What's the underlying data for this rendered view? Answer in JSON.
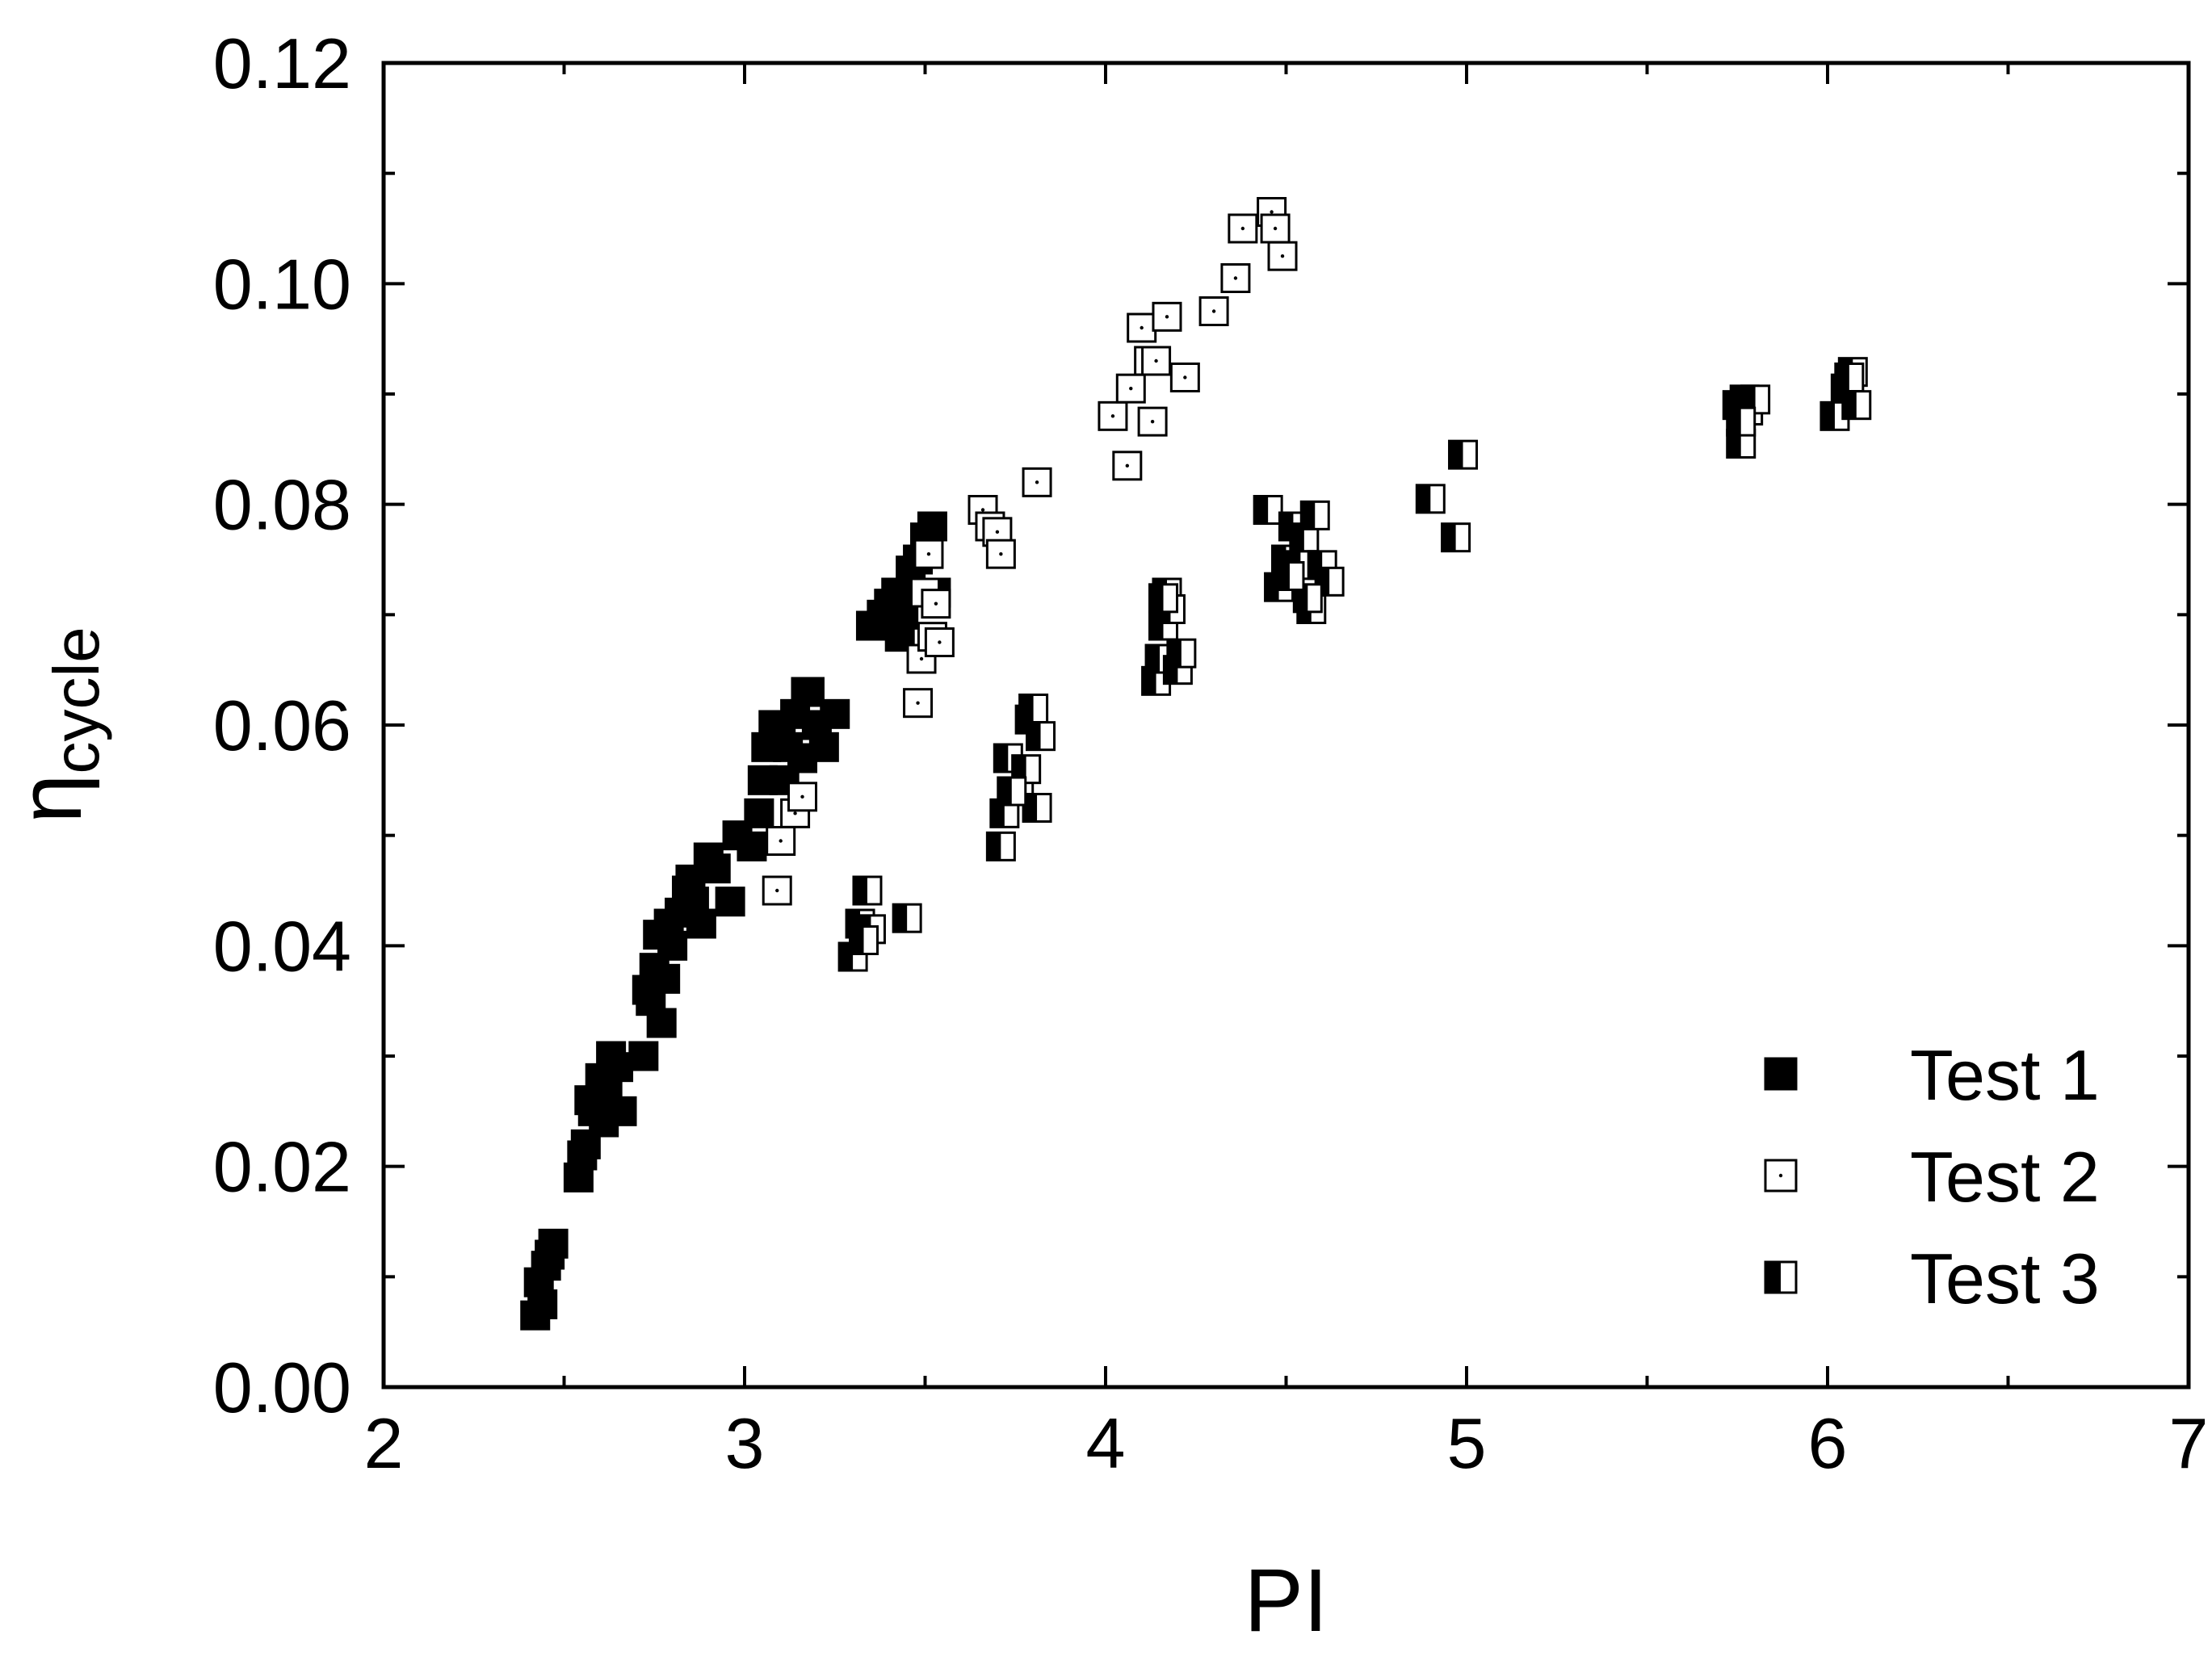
{
  "chart_data": {
    "type": "scatter",
    "title": "",
    "xlabel": "PI",
    "ylabel_main": "η",
    "ylabel_sub": "cycle",
    "xlim": [
      2,
      7
    ],
    "ylim": [
      0,
      0.12
    ],
    "x_ticks": [
      "2",
      "3",
      "4",
      "5",
      "6",
      "7"
    ],
    "y_ticks": [
      "0.00",
      "0.02",
      "0.04",
      "0.06",
      "0.08",
      "0.10",
      "0.12"
    ],
    "grid": false,
    "legend_position": "bottom-right",
    "series": [
      {
        "name": "Test 1",
        "marker": "filled-square",
        "x": [
          2.42,
          2.44,
          2.45,
          2.47,
          2.43,
          2.46,
          2.54,
          2.56,
          2.58,
          2.6,
          2.62,
          2.55,
          2.63,
          2.66,
          2.65,
          2.57,
          2.61,
          2.72,
          2.74,
          2.75,
          2.76,
          2.77,
          2.78,
          2.8,
          2.82,
          2.79,
          2.73,
          2.84,
          2.86,
          2.88,
          2.9,
          2.85,
          2.92,
          2.96,
          2.98,
          3.02,
          3.04,
          3.05,
          3.06,
          3.08,
          3.1,
          3.12,
          3.14,
          3.16,
          3.18,
          3.2,
          3.22,
          3.25,
          3.11,
          3.17,
          3.35,
          3.38,
          3.4,
          3.42,
          3.44,
          3.46,
          3.48,
          3.5,
          3.52,
          3.53,
          3.43
        ],
        "y": [
          0.0065,
          0.0075,
          0.011,
          0.013,
          0.0095,
          0.012,
          0.019,
          0.022,
          0.025,
          0.028,
          0.027,
          0.021,
          0.03,
          0.025,
          0.029,
          0.026,
          0.024,
          0.03,
          0.035,
          0.038,
          0.041,
          0.033,
          0.037,
          0.04,
          0.043,
          0.042,
          0.036,
          0.045,
          0.044,
          0.042,
          0.048,
          0.046,
          0.047,
          0.044,
          0.05,
          0.049,
          0.052,
          0.055,
          0.058,
          0.06,
          0.059,
          0.058,
          0.061,
          0.057,
          0.063,
          0.06,
          0.058,
          0.061,
          0.055,
          0.063,
          0.069,
          0.07,
          0.071,
          0.072,
          0.07,
          0.074,
          0.075,
          0.077,
          0.078,
          0.072,
          0.068
        ]
      },
      {
        "name": "Test 2",
        "marker": "open-square-dot",
        "x": [
          3.09,
          3.1,
          3.14,
          3.16,
          3.48,
          3.49,
          3.5,
          3.51,
          3.52,
          3.53,
          3.54,
          3.66,
          3.68,
          3.7,
          3.71,
          3.81,
          4.02,
          4.06,
          4.07,
          4.1,
          4.12,
          4.13,
          4.14,
          4.17,
          4.22,
          4.3,
          4.36,
          4.38,
          4.46,
          4.47,
          4.49
        ],
        "y": [
          0.045,
          0.0495,
          0.052,
          0.0535,
          0.062,
          0.066,
          0.072,
          0.0755,
          0.068,
          0.071,
          0.0675,
          0.0795,
          0.078,
          0.0775,
          0.0755,
          0.082,
          0.088,
          0.0835,
          0.0905,
          0.096,
          0.093,
          0.0875,
          0.093,
          0.097,
          0.0915,
          0.0975,
          0.1005,
          0.105,
          0.1065,
          0.105,
          0.1025
        ]
      },
      {
        "name": "Test 3",
        "marker": "half-filled-square",
        "x": [
          3.3,
          3.32,
          3.34,
          3.35,
          3.33,
          3.45,
          3.71,
          3.72,
          3.73,
          3.76,
          3.78,
          3.79,
          3.8,
          3.81,
          3.82,
          3.74,
          4.14,
          4.15,
          4.16,
          4.17,
          4.18,
          4.2,
          4.21,
          4.16,
          4.45,
          4.48,
          4.5,
          4.52,
          4.54,
          4.55,
          4.57,
          4.58,
          4.6,
          4.62,
          4.56,
          4.51,
          4.9,
          4.97,
          4.99,
          5.75,
          5.76,
          5.77,
          5.78,
          5.8,
          5.76,
          6.02,
          6.05,
          6.07,
          6.08,
          6.06
        ],
        "y": [
          0.039,
          0.042,
          0.045,
          0.0415,
          0.0405,
          0.0425,
          0.049,
          0.052,
          0.057,
          0.054,
          0.056,
          0.0605,
          0.0615,
          0.0525,
          0.059,
          0.054,
          0.064,
          0.066,
          0.069,
          0.072,
          0.0705,
          0.065,
          0.0665,
          0.0715,
          0.0795,
          0.0725,
          0.075,
          0.078,
          0.0745,
          0.077,
          0.0705,
          0.079,
          0.0745,
          0.073,
          0.0715,
          0.0735,
          0.0805,
          0.077,
          0.0845,
          0.089,
          0.0855,
          0.0895,
          0.0885,
          0.0895,
          0.0875,
          0.088,
          0.0905,
          0.092,
          0.089,
          0.0915
        ]
      }
    ]
  }
}
